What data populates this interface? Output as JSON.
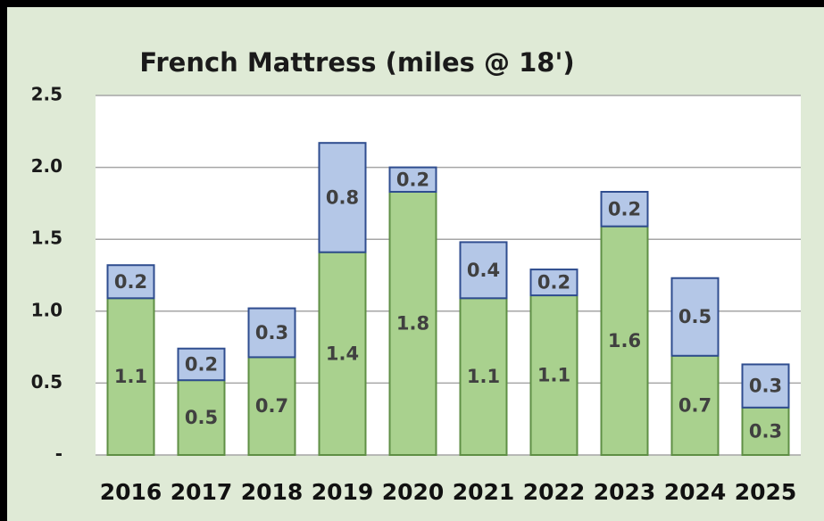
{
  "chart_data": {
    "type": "stacked_bar",
    "title": "French Mattress (miles @ 18')",
    "categories": [
      "2016",
      "2017",
      "2018",
      "2019",
      "2020",
      "2021",
      "2022",
      "2023",
      "2024",
      "2025"
    ],
    "series": [
      {
        "color": "#a9d18e",
        "values": [
          1.09,
          0.52,
          0.68,
          1.41,
          1.83,
          1.09,
          1.11,
          1.59,
          0.69,
          0.33
        ],
        "value_labels": [
          "1.1",
          "0.5",
          "0.7",
          "1.4",
          "1.8",
          "1.1",
          "1.1",
          "1.6",
          "0.7",
          "0.3"
        ]
      },
      {
        "color": "#b4c7e7",
        "values": [
          0.23,
          0.22,
          0.34,
          0.76,
          0.17,
          0.39,
          0.18,
          0.24,
          0.54,
          0.3
        ],
        "value_labels": [
          "0.2",
          "0.2",
          "0.3",
          "0.8",
          "0.2",
          "0.4",
          "0.2",
          "0.2",
          "0.5",
          "0.3"
        ]
      }
    ],
    "ylim": [
      0,
      2.5
    ],
    "yticks": [
      {
        "value": 0,
        "label": "-"
      },
      0.5,
      {
        "value": 1,
        "label": "1.0"
      },
      1.5,
      {
        "value": 2,
        "label": "2.0"
      },
      2.5
    ],
    "grid": true
  }
}
